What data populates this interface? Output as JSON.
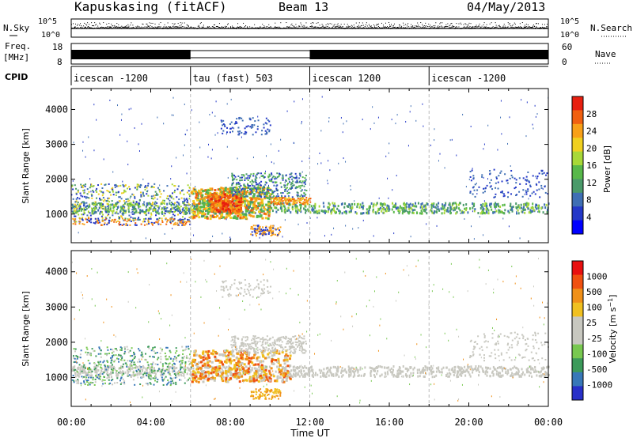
{
  "header": {
    "station": "Kapuskasing (fitACF)",
    "beam": "Beam 13",
    "date": "04/May/2013"
  },
  "noise_panel": {
    "left_label": "N.Sky",
    "right_label": "N.Search",
    "left_ticks": [
      "10^5",
      "10^0"
    ],
    "right_ticks": [
      "10^5",
      "10^0"
    ]
  },
  "freq_panel": {
    "left_label_1": "Freq.",
    "left_label_2": "[MHz]",
    "left_ticks": [
      "18",
      "8"
    ],
    "right_label": "Nave",
    "right_ticks": [
      "60",
      "0"
    ]
  },
  "cpid_panel": {
    "label": "CPID",
    "segments": [
      {
        "name": "icescan -1200",
        "start_h": 0,
        "end_h": 6
      },
      {
        "name": "tau (fast) 503",
        "start_h": 6,
        "end_h": 12
      },
      {
        "name": "icescan 1200",
        "start_h": 12,
        "end_h": 18
      },
      {
        "name": "icescan -1200",
        "start_h": 18,
        "end_h": 24
      }
    ]
  },
  "chart_data": [
    {
      "type": "heatmap",
      "ylabel": "Slant Range [km]",
      "ylim": [
        180,
        4600
      ],
      "xlim": [
        0,
        24
      ],
      "yticks": [
        1000,
        2000,
        3000,
        4000
      ],
      "colorbar": {
        "label": "Power [dB]",
        "ticks": [
          "28",
          "24",
          "20",
          "16",
          "12",
          "8",
          "4"
        ],
        "colors": [
          "#0000ff",
          "#2438c8",
          "#3f6fb4",
          "#4a9a6a",
          "#58b84a",
          "#a8d838",
          "#f0d020",
          "#f8a018",
          "#f06010",
          "#e82010"
        ]
      }
    },
    {
      "type": "heatmap",
      "ylabel": "Slant Range [km]",
      "ylim": [
        180,
        4600
      ],
      "xlim": [
        0,
        24
      ],
      "yticks": [
        1000,
        2000,
        3000,
        4000
      ],
      "colorbar": {
        "label": "Velocity [m s^-1]",
        "ticks": [
          "1000",
          "500",
          "100",
          "25",
          "-25",
          "-100",
          "-500",
          "-1000"
        ],
        "colors": [
          "#2830c8",
          "#3878b8",
          "#3c9a5a",
          "#78c850",
          "#c8c8c0",
          "#c8c8c0",
          "#f0c020",
          "#f09018",
          "#f05010",
          "#e81010"
        ]
      }
    }
  ],
  "xaxis": {
    "label": "Time UT",
    "ticks": [
      "00:00",
      "04:00",
      "08:00",
      "12:00",
      "16:00",
      "20:00",
      "00:00"
    ]
  }
}
